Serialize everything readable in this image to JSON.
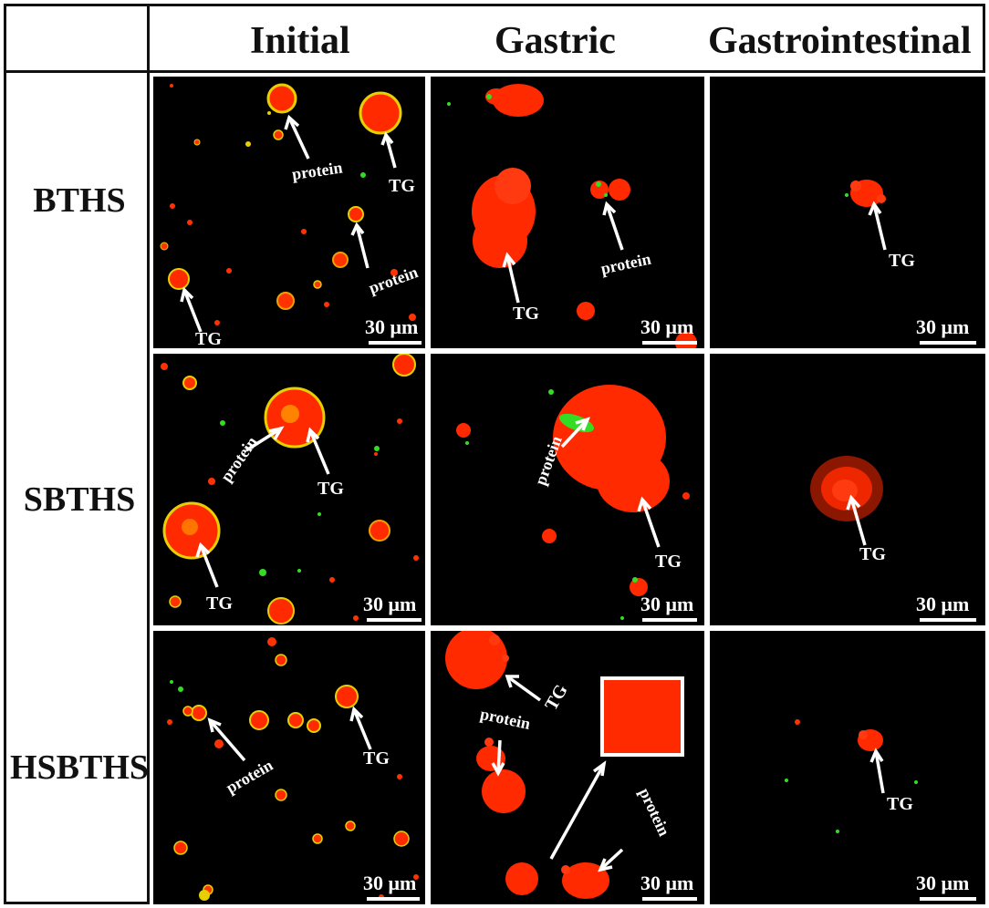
{
  "columns": [
    "Initial",
    "Gastric",
    "Gastrointestinal"
  ],
  "rows": [
    "BTHS",
    "SBTHS",
    "HSBTHS"
  ],
  "labels": {
    "protein": "protein",
    "tg": "TG"
  },
  "scale_bar": "30 μm",
  "colors": {
    "droplet": "#ff1a00",
    "protein_stain": "#33dd22",
    "border": "#111111"
  }
}
